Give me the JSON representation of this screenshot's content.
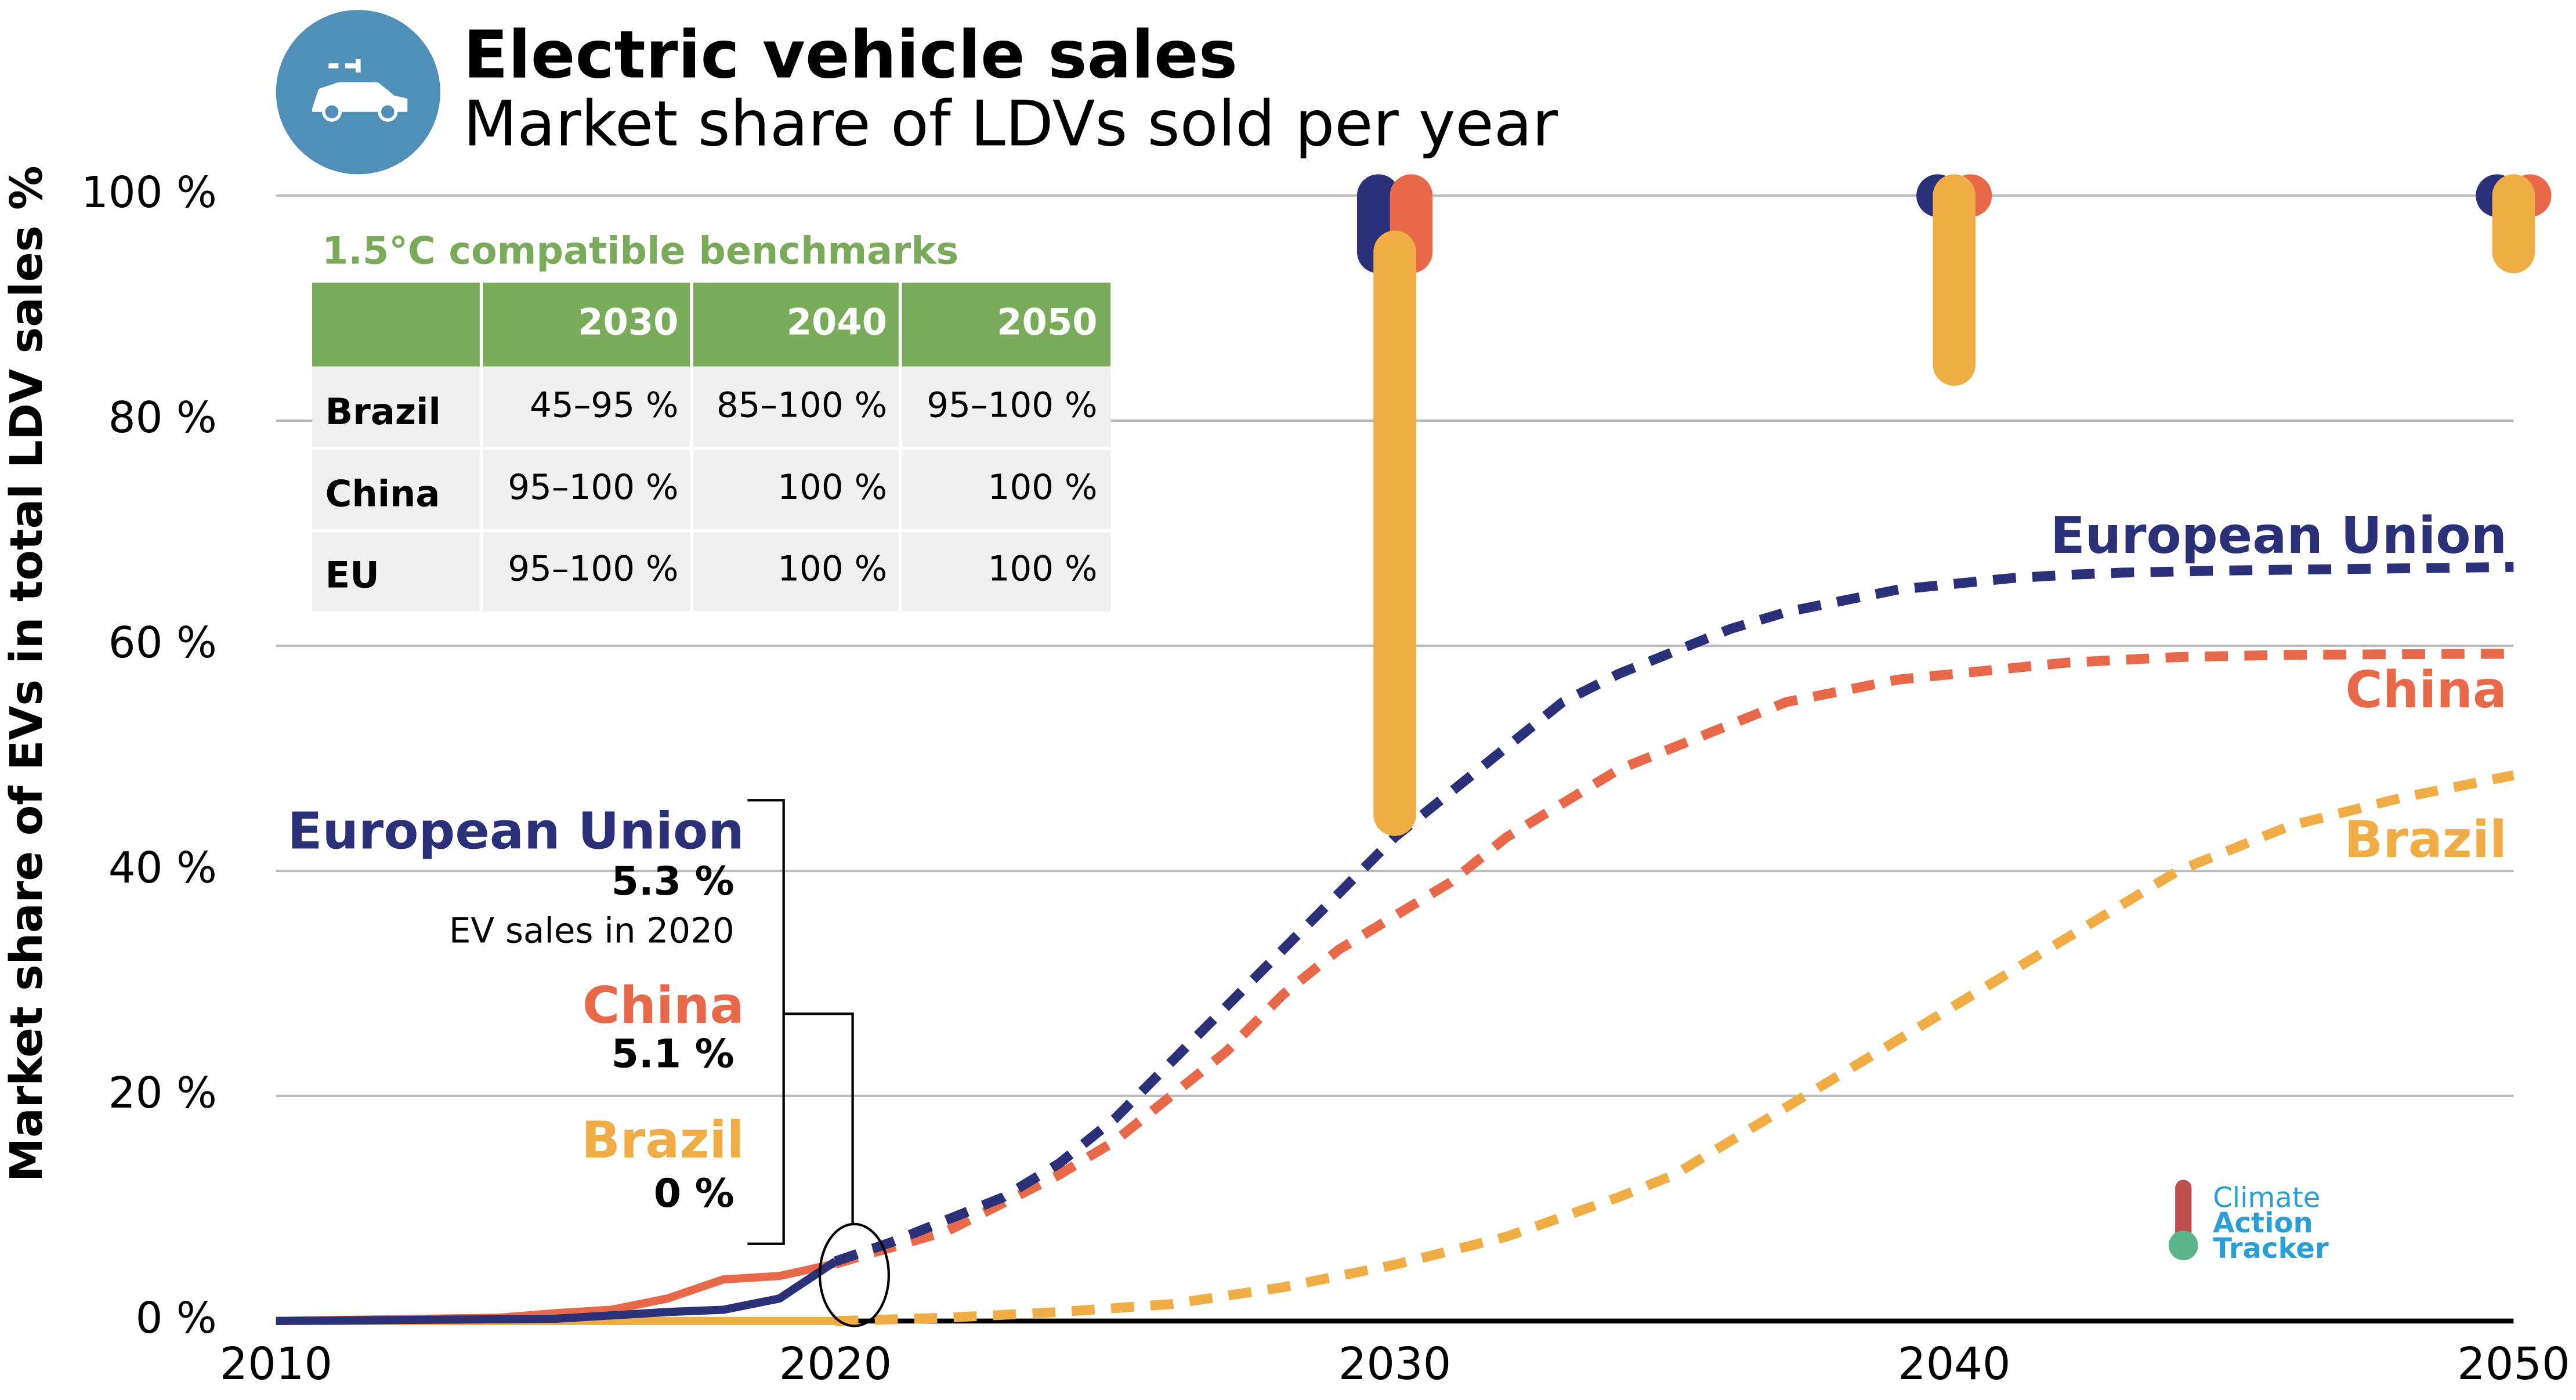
{
  "chart_data": {
    "type": "line",
    "title": "Electric vehicle sales",
    "subtitle": "Market share of LDVs sold per year",
    "y_label": "Market share of EVs in total LDV sales %",
    "xlim": [
      2010,
      2050
    ],
    "xticks": [
      2010,
      2020,
      2030,
      2040,
      2050
    ],
    "ylim": [
      0,
      100
    ],
    "yticks": [
      {
        "value": 0,
        "label": "0 %"
      },
      {
        "value": 20,
        "label": "20 %"
      },
      {
        "value": 40,
        "label": "40 %"
      },
      {
        "value": 60,
        "label": "60 %"
      },
      {
        "value": 80,
        "label": "80 %"
      },
      {
        "value": 100,
        "label": "100 %"
      }
    ],
    "grid": true,
    "annotation": "EV sales in 2020",
    "benchmark_x": [
      2030,
      2040,
      2050
    ],
    "series": [
      {
        "name": "European Union",
        "color": "#2b3178",
        "label_2020": "5.3 %",
        "x_history": [
          2010,
          2015,
          2016,
          2017,
          2018,
          2019,
          2020
        ],
        "history": [
          0,
          0.2,
          0.5,
          0.8,
          1,
          2,
          5.3
        ],
        "x_projection": [
          2020,
          2021,
          2022,
          2023,
          2024,
          2025,
          2026,
          2027,
          2028,
          2029,
          2030,
          2031,
          2032,
          2033,
          2034,
          2035,
          2036,
          2037,
          2038,
          2039,
          2040,
          2041,
          2042,
          2043,
          2045,
          2050
        ],
        "projection": [
          5.3,
          7,
          9,
          11,
          14,
          18,
          23,
          28,
          33,
          38,
          43,
          47,
          51,
          55,
          57.5,
          59.5,
          61.5,
          63,
          64,
          65,
          65.5,
          66,
          66.3,
          66.5,
          66.7,
          67
        ],
        "benchmark": [
          [
            95,
            100
          ],
          [
            100,
            100
          ],
          [
            100,
            100
          ]
        ]
      },
      {
        "name": "China",
        "color": "#e8694a",
        "label_2020": "5.1 %",
        "x_history": [
          2010,
          2014,
          2015,
          2016,
          2017,
          2018,
          2019,
          2020
        ],
        "history": [
          0,
          0.3,
          0.7,
          1,
          2,
          3.7,
          4,
          5.1
        ],
        "x_projection": [
          2020,
          2022,
          2024,
          2025,
          2026,
          2027,
          2028,
          2029,
          2030,
          2031,
          2032,
          2033,
          2034,
          2035,
          2036,
          2037,
          2038,
          2039,
          2040,
          2042,
          2044,
          2046,
          2050
        ],
        "projection": [
          5.1,
          8,
          13,
          16,
          20,
          24,
          29,
          33,
          36,
          39,
          43,
          46,
          49,
          51,
          53,
          55,
          56,
          57,
          57.5,
          58.5,
          59,
          59.2,
          59.3
        ],
        "benchmark": [
          [
            95,
            100
          ],
          [
            100,
            100
          ],
          [
            100,
            100
          ]
        ]
      },
      {
        "name": "Brazil",
        "color": "#f0ad46",
        "label_2020": "0 %",
        "x_history": [
          2010,
          2020
        ],
        "history": [
          0,
          0
        ],
        "x_projection": [
          2020,
          2022,
          2024,
          2026,
          2028,
          2030,
          2032,
          2034,
          2035,
          2036,
          2037,
          2038,
          2039,
          2040,
          2041,
          2042,
          2043,
          2044,
          2045,
          2046,
          2048,
          2050
        ],
        "projection": [
          0,
          0.3,
          0.8,
          1.5,
          3,
          5,
          7.5,
          11,
          13,
          16,
          19,
          22,
          25,
          28,
          31,
          34,
          37,
          40,
          42,
          44,
          46.5,
          48.5
        ],
        "benchmark": [
          [
            45,
            95
          ],
          [
            85,
            100
          ],
          [
            95,
            100
          ]
        ]
      }
    ],
    "table": {
      "title": "1.5°C compatible benchmarks",
      "columns": [
        "2030",
        "2040",
        "2050"
      ],
      "rows": [
        {
          "name": "Brazil",
          "cells": [
            "45–95 %",
            "85–100 %",
            "95–100 %"
          ]
        },
        {
          "name": "China",
          "cells": [
            "95–100 %",
            "100 %",
            "100 %"
          ]
        },
        {
          "name": "EU",
          "cells": [
            "95–100 %",
            "100 %",
            "100 %"
          ]
        }
      ]
    },
    "logo": [
      "Climate",
      "Action",
      "Tracker"
    ]
  }
}
